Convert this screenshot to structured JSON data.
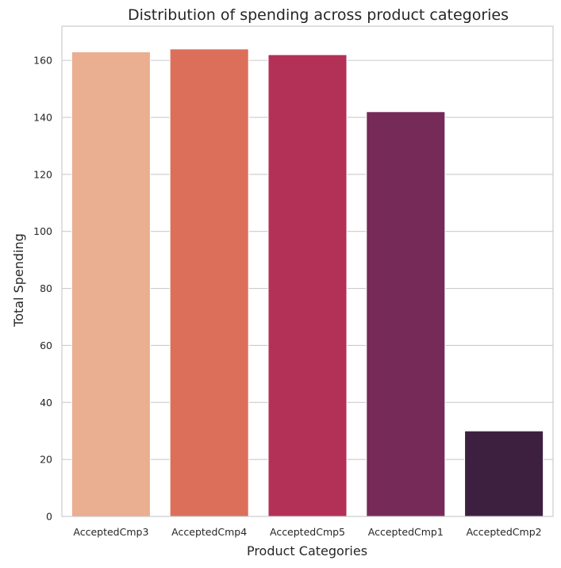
{
  "chart_data": {
    "type": "bar",
    "title": "Distribution of spending across product categories",
    "xlabel": "Product Categories",
    "ylabel": "Total Spending",
    "categories": [
      "AcceptedCmp3",
      "AcceptedCmp4",
      "AcceptedCmp5",
      "AcceptedCmp1",
      "AcceptedCmp2"
    ],
    "values": [
      163,
      164,
      162,
      142,
      30
    ],
    "colors": [
      "#EAAE90",
      "#DC6F5A",
      "#B33056",
      "#762A57",
      "#3D2040"
    ],
    "ylim": [
      0,
      172
    ],
    "yticks": [
      0,
      20,
      40,
      60,
      80,
      100,
      120,
      140,
      160
    ],
    "grid": "horizontal",
    "legend": "none"
  }
}
